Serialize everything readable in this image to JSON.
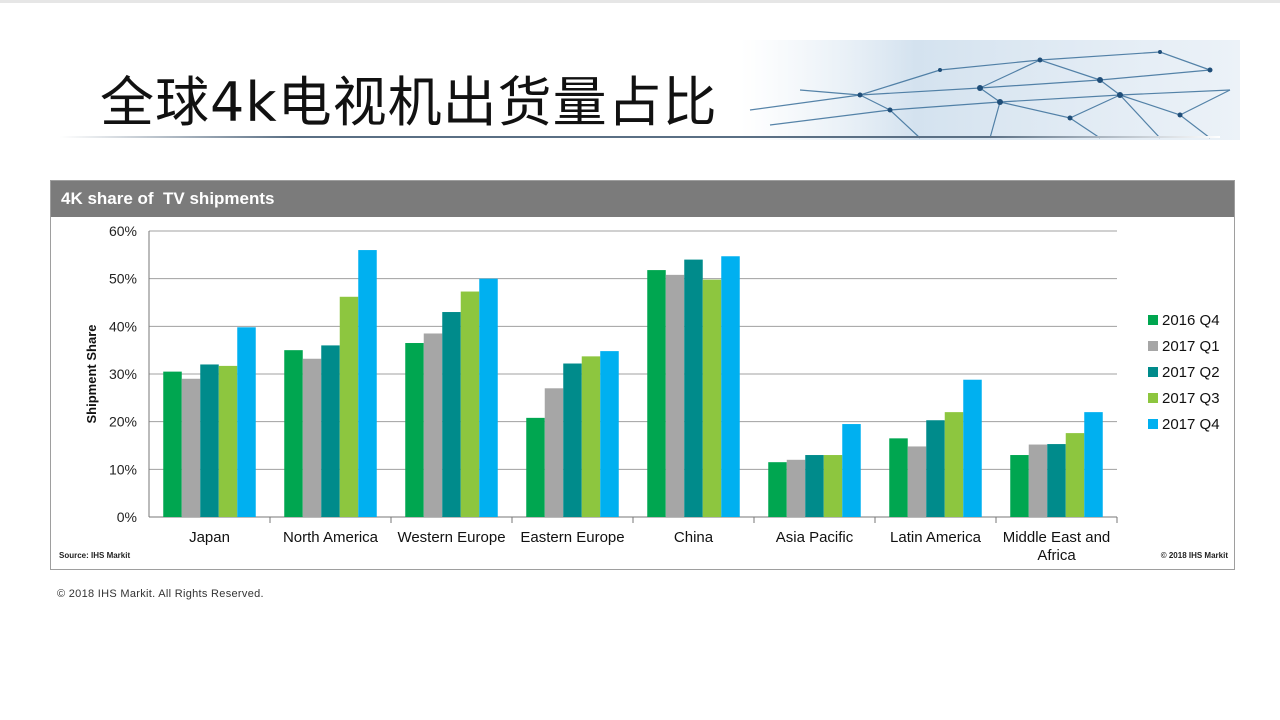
{
  "slide": {
    "title": "全球4k电视机出货量占比",
    "copyright": "© 2018 IHS Markit. All Rights Reserved."
  },
  "chart_box": {
    "header": "4K share of  TV shipments",
    "source_left": "Source: IHS Markit",
    "source_right": "© 2018 IHS Markit"
  },
  "chart_data": {
    "type": "bar",
    "title": "4K share of  TV shipments",
    "ylabel": "Shipment Share",
    "xlabel": "",
    "ylim": [
      0,
      60
    ],
    "yticks": [
      "0%",
      "10%",
      "20%",
      "30%",
      "40%",
      "50%",
      "60%"
    ],
    "grid": true,
    "legend_position": "right",
    "categories": [
      "Japan",
      "North America",
      "Western Europe",
      "Eastern Europe",
      "China",
      "Asia Pacific",
      "Latin America",
      "Middle East and Africa"
    ],
    "series": [
      {
        "name": "2016 Q4",
        "color": "#00a650",
        "values": [
          30.5,
          35,
          36.5,
          20.8,
          51.8,
          11.5,
          16.5,
          13
        ]
      },
      {
        "name": "2017 Q1",
        "color": "#a6a6a6",
        "values": [
          29,
          33.2,
          38.5,
          27,
          50.8,
          12,
          14.8,
          15.2
        ]
      },
      {
        "name": "2017 Q2",
        "color": "#008b8b",
        "values": [
          32,
          36,
          43,
          32.2,
          54,
          13,
          20.3,
          15.3
        ]
      },
      {
        "name": "2017 Q3",
        "color": "#8dc63f",
        "values": [
          31.7,
          46.2,
          47.3,
          33.7,
          49.8,
          13,
          22,
          17.6
        ]
      },
      {
        "name": "2017 Q4",
        "color": "#00b0f0",
        "values": [
          39.8,
          56,
          50,
          34.8,
          54.7,
          19.5,
          28.8,
          22
        ]
      }
    ]
  }
}
